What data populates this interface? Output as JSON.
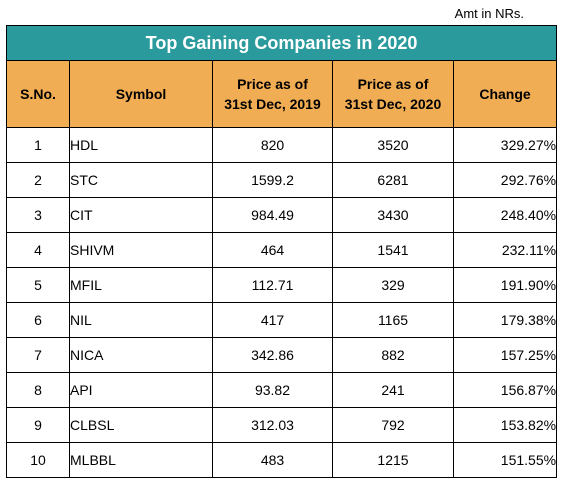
{
  "note": "Amt in NRs.",
  "title": "Top Gaining Companies in 2020",
  "headers": {
    "sno": "S.No.",
    "symbol": "Symbol",
    "price2019_line1": "Price as of",
    "price2019_line2": "31st Dec, 2019",
    "price2020_line1": "Price as of",
    "price2020_line2": "31st Dec, 2020",
    "change": "Change"
  },
  "rows": [
    {
      "sno": "1",
      "symbol": "HDL",
      "price2019": "820",
      "price2020": "3520",
      "change": "329.27%"
    },
    {
      "sno": "2",
      "symbol": "STC",
      "price2019": "1599.2",
      "price2020": "6281",
      "change": "292.76%"
    },
    {
      "sno": "3",
      "symbol": "CIT",
      "price2019": "984.49",
      "price2020": "3430",
      "change": "248.40%"
    },
    {
      "sno": "4",
      "symbol": "SHIVM",
      "price2019": "464",
      "price2020": "1541",
      "change": "232.11%"
    },
    {
      "sno": "5",
      "symbol": "MFIL",
      "price2019": "112.71",
      "price2020": "329",
      "change": "191.90%"
    },
    {
      "sno": "6",
      "symbol": "NIL",
      "price2019": "417",
      "price2020": "1165",
      "change": "179.38%"
    },
    {
      "sno": "7",
      "symbol": "NICA",
      "price2019": "342.86",
      "price2020": "882",
      "change": "157.25%"
    },
    {
      "sno": "8",
      "symbol": "API",
      "price2019": "93.82",
      "price2020": "241",
      "change": "156.87%"
    },
    {
      "sno": "9",
      "symbol": "CLBSL",
      "price2019": "312.03",
      "price2020": "792",
      "change": "153.82%"
    },
    {
      "sno": "10",
      "symbol": "MLBBL",
      "price2019": "483",
      "price2020": "1215",
      "change": "151.55%"
    }
  ],
  "colors": {
    "title_bg": "#2b9a9c",
    "header_bg": "#f1ad54"
  }
}
